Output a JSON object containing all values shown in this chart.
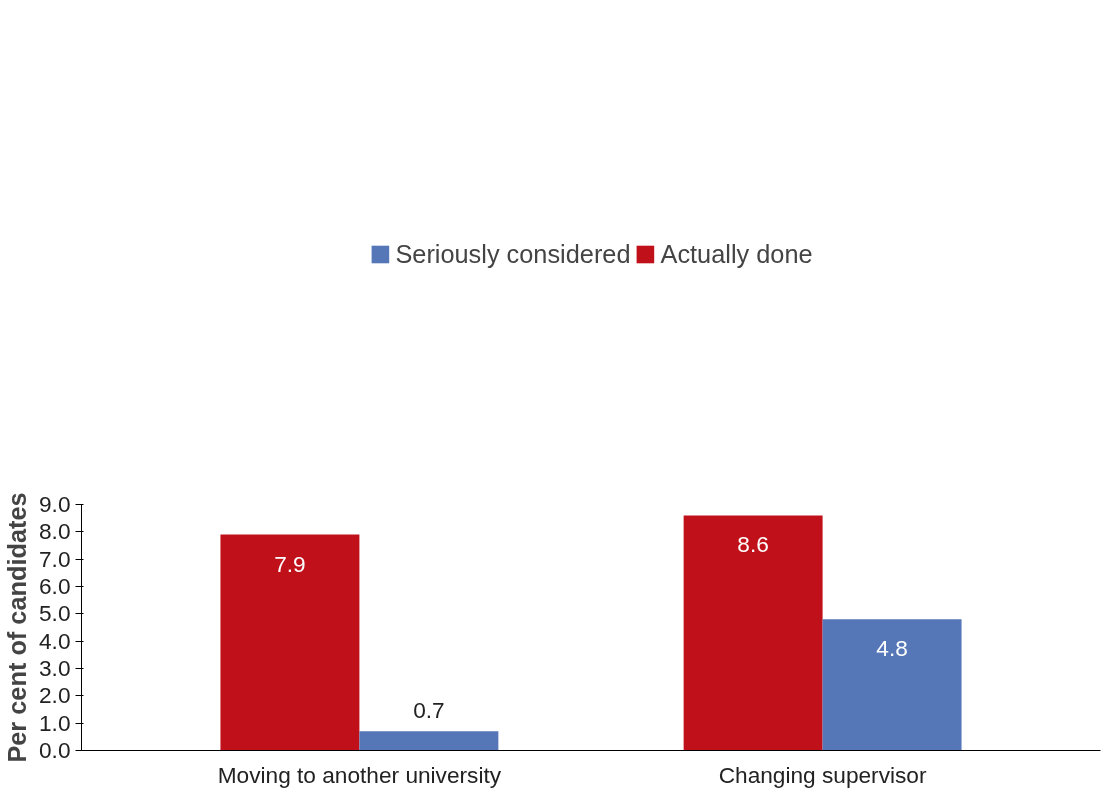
{
  "chart_data": {
    "type": "bar",
    "ylabel": "Per cent of candidates",
    "categories": [
      "Moving to another university",
      "Changing supervisor"
    ],
    "series": [
      {
        "name": "Actually done",
        "color": "#c0111a",
        "values": [
          7.9,
          8.6
        ]
      },
      {
        "name": "Seriously considered",
        "color": "#5577b8",
        "values": [
          0.7,
          4.8
        ]
      }
    ],
    "ylim": [
      0,
      9
    ],
    "yticks": [
      {
        "value": 0,
        "label": "0.0"
      },
      {
        "value": 1,
        "label": "1.0"
      },
      {
        "value": 2,
        "label": "2.0"
      },
      {
        "value": 3,
        "label": "3.0"
      },
      {
        "value": 4,
        "label": "4.0"
      },
      {
        "value": 5,
        "label": "5.0"
      },
      {
        "value": 6,
        "label": "6.0"
      },
      {
        "value": 7,
        "label": "7.0"
      },
      {
        "value": 8,
        "label": "8.0"
      },
      {
        "value": 9,
        "label": "9.0"
      }
    ],
    "data_labels": true,
    "grid": false,
    "legend": "top"
  }
}
